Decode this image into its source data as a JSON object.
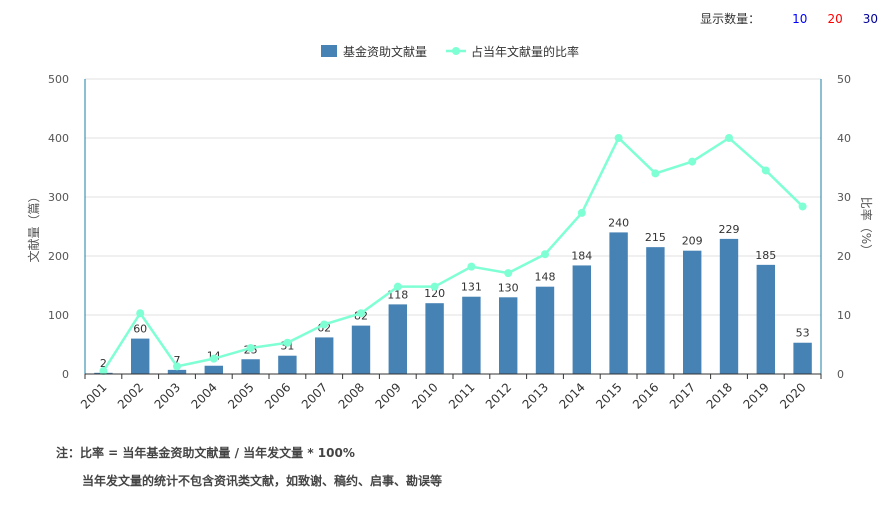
{
  "display_control": {
    "label": "显示数量：",
    "options": [
      {
        "label": "10",
        "color": "#0000ff"
      },
      {
        "label": "20",
        "color": "#ff0000"
      },
      {
        "label": "30",
        "color": "#000099"
      }
    ]
  },
  "notes": {
    "line1": "注：比率 = 当年基金资助文献量 / 当年发文量 * 100%",
    "line2": "当年发文量的统计不包含资讯类文献，如致谢、稿约、启事、勘误等"
  },
  "chart_data": {
    "type": "bar+line",
    "categories": [
      "2001",
      "2002",
      "2003",
      "2004",
      "2005",
      "2006",
      "2007",
      "2008",
      "2009",
      "2010",
      "2011",
      "2012",
      "2013",
      "2014",
      "2015",
      "2016",
      "2017",
      "2018",
      "2019",
      "2020"
    ],
    "series": [
      {
        "name": "基金资助文献量",
        "type": "bar",
        "axis": "left",
        "color": "#4682b4",
        "values": [
          2,
          60,
          7,
          14,
          25,
          31,
          62,
          82,
          118,
          120,
          131,
          130,
          148,
          184,
          240,
          215,
          209,
          229,
          185,
          53
        ]
      },
      {
        "name": "占当年文献量的比率",
        "type": "line",
        "axis": "right",
        "color": "#7fffd4",
        "values": [
          0.5,
          10.3,
          1.3,
          2.6,
          4.4,
          5.3,
          8.4,
          10.3,
          14.8,
          14.8,
          18.2,
          17.1,
          20.3,
          27.3,
          40.0,
          34.0,
          36.0,
          40.0,
          34.5,
          28.4
        ]
      }
    ],
    "ylabel_left": "文献量（篇）",
    "ylabel_right": "比率（%）",
    "ylim_left": [
      0,
      500
    ],
    "ylim_right": [
      0,
      50
    ],
    "yticks_left": [
      "0",
      "100",
      "200",
      "300",
      "400",
      "500"
    ],
    "yticks_right": [
      "0",
      "10",
      "20",
      "30",
      "40",
      "50"
    ],
    "grid": true,
    "legend_position": "top-center"
  }
}
